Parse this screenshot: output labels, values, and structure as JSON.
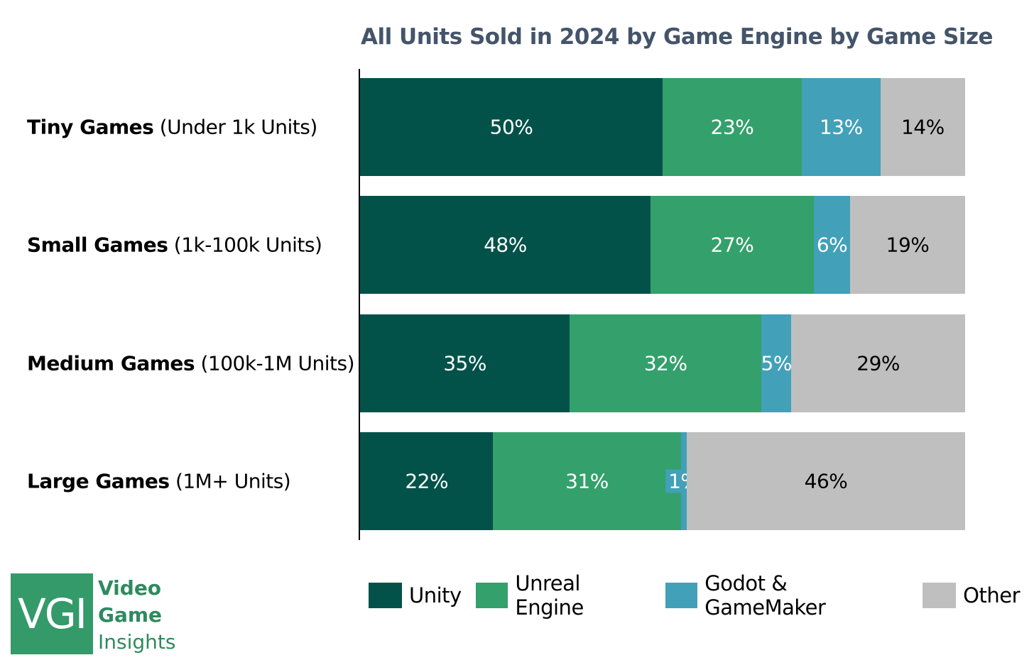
{
  "chart_data": {
    "type": "bar",
    "orientation": "horizontal",
    "stacked": true,
    "title": "All Units Sold in 2024 by Game Engine by Game Size",
    "categories": [
      {
        "bold": "Tiny Games",
        "rest": " (Under 1k Units)"
      },
      {
        "bold": "Small Games",
        "rest": " (1k-100k Units)"
      },
      {
        "bold": "Medium Games",
        "rest": " (100k-1M Units)"
      },
      {
        "bold": "Large Games",
        "rest": " (1M+ Units)"
      }
    ],
    "series": [
      {
        "name": "Unity",
        "color": "#03524A",
        "label_color": "#ffffff",
        "values": [
          50,
          48,
          35,
          22
        ],
        "labels": [
          "50%",
          "48%",
          "35%",
          "22%"
        ]
      },
      {
        "name": "Unreal Engine",
        "color": "#34A06C",
        "label_color": "#ffffff",
        "values": [
          23,
          27,
          32,
          31
        ],
        "labels": [
          "23%",
          "27%",
          "32%",
          "31%"
        ]
      },
      {
        "name": "Godot & GameMaker",
        "color": "#42A0B8",
        "label_color": "#ffffff",
        "values": [
          13,
          6,
          5,
          1
        ],
        "labels": [
          "13%",
          "6%",
          "5%",
          "1%"
        ]
      },
      {
        "name": "Other",
        "color": "#BFBFBF",
        "label_color": "#000000",
        "values": [
          14,
          19,
          29,
          46
        ],
        "labels": [
          "14%",
          "19%",
          "29%",
          "46%"
        ]
      }
    ],
    "unit": "%",
    "xlim": [
      0,
      100
    ],
    "grid": false,
    "legend": "bottom"
  },
  "logo": {
    "mark": "VGI",
    "lines": [
      "Video",
      "Game",
      "Insights"
    ]
  }
}
